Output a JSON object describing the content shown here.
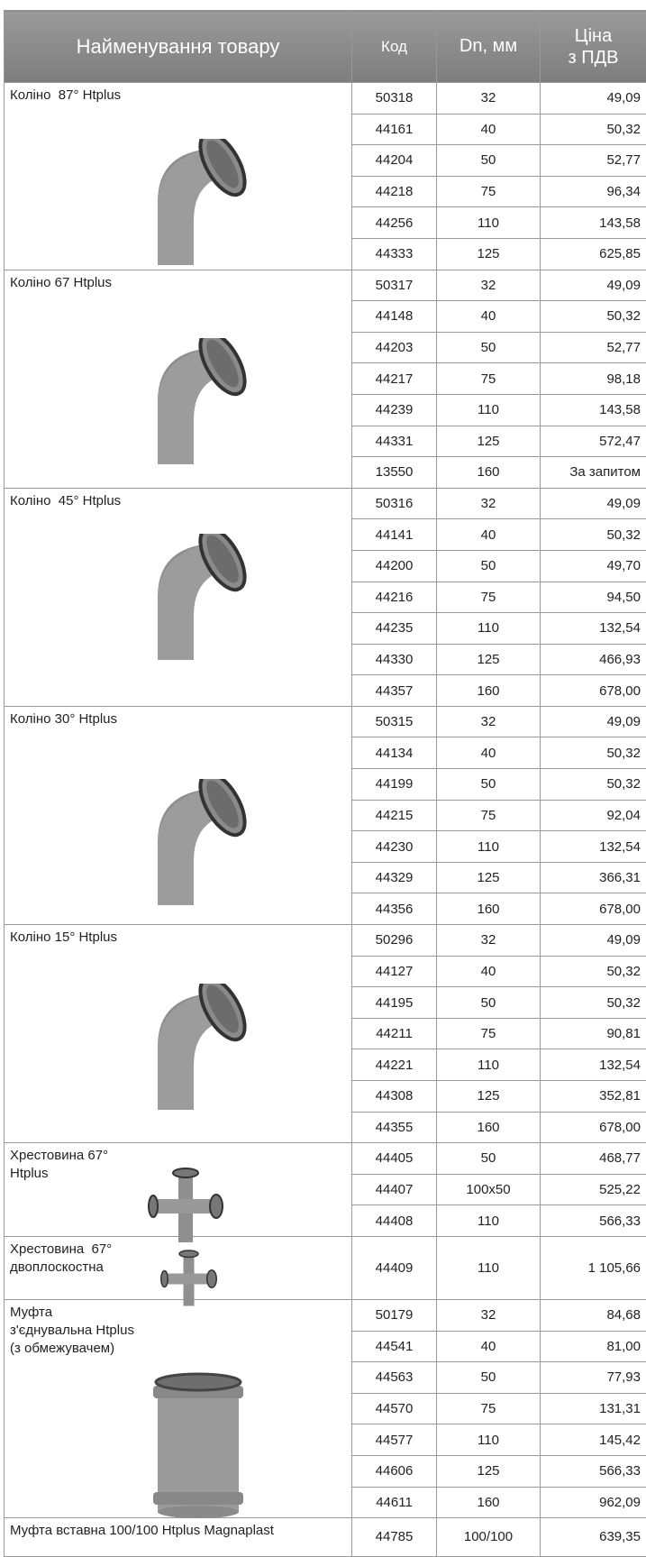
{
  "table": {
    "header": [
      "Найменування товару",
      "Код",
      "Dn, мм",
      [
        "Ціна",
        "з ПДВ"
      ]
    ],
    "groups": [
      {
        "name": "Коліно  87° Htplus",
        "rows": [
          [
            "50318",
            "32",
            "49,09"
          ],
          [
            "44161",
            "40",
            "50,32"
          ],
          [
            "44204",
            "50",
            "52,77"
          ],
          [
            "44218",
            "75",
            "96,34"
          ],
          [
            "44256",
            "110",
            "143,58"
          ],
          [
            "44333",
            "125",
            "625,85"
          ]
        ]
      },
      {
        "name": "Коліно 67 Htplus",
        "rows": [
          [
            "50317",
            "32",
            "49,09"
          ],
          [
            "44148",
            "40",
            "50,32"
          ],
          [
            "44203",
            "50",
            "52,77"
          ],
          [
            "44217",
            "75",
            "98,18"
          ],
          [
            "44239",
            "110",
            "143,58"
          ],
          [
            "44331",
            "125",
            "572,47"
          ],
          [
            "13550",
            "160",
            "За запитом"
          ]
        ]
      },
      {
        "name": "Коліно  45° Htplus",
        "rows": [
          [
            "50316",
            "32",
            "49,09"
          ],
          [
            "44141",
            "40",
            "50,32"
          ],
          [
            "44200",
            "50",
            "49,70"
          ],
          [
            "44216",
            "75",
            "94,50"
          ],
          [
            "44235",
            "110",
            "132,54"
          ],
          [
            "44330",
            "125",
            "466,93"
          ],
          [
            "44357",
            "160",
            "678,00"
          ]
        ]
      },
      {
        "name": "Коліно 30° Htplus",
        "rows": [
          [
            "50315",
            "32",
            "49,09"
          ],
          [
            "44134",
            "40",
            "50,32"
          ],
          [
            "44199",
            "50",
            "50,32"
          ],
          [
            "44215",
            "75",
            "92,04"
          ],
          [
            "44230",
            "110",
            "132,54"
          ],
          [
            "44329",
            "125",
            "366,31"
          ],
          [
            "44356",
            "160",
            "678,00"
          ]
        ]
      },
      {
        "name": "Коліно 15° Htplus",
        "rows": [
          [
            "50296",
            "32",
            "49,09"
          ],
          [
            "44127",
            "40",
            "50,32"
          ],
          [
            "44195",
            "50",
            "50,32"
          ],
          [
            "44211",
            "75",
            "90,81"
          ],
          [
            "44221",
            "110",
            "132,54"
          ],
          [
            "44308",
            "125",
            "352,81"
          ],
          [
            "44355",
            "160",
            "678,00"
          ]
        ]
      },
      {
        "name": "Хрестовина 67° Htplus",
        "rows": [
          [
            "44405",
            "50",
            "468,77"
          ],
          [
            "44407",
            "100x50",
            "525,22"
          ],
          [
            "44408",
            "110",
            "566,33"
          ]
        ]
      },
      {
        "name": "Хрестовина  67° двоплоскостна",
        "rows": [
          [
            "44409",
            "110",
            "1 105,66"
          ]
        ]
      },
      {
        "name": "Муфта з'єднувальна Htplus (з обмежувачем)",
        "rows": [
          [
            "50179",
            "32",
            "84,68"
          ],
          [
            "44541",
            "40",
            "81,00"
          ],
          [
            "44563",
            "50",
            "77,93"
          ],
          [
            "44570",
            "75",
            "131,31"
          ],
          [
            "44577",
            "110",
            "145,42"
          ],
          [
            "44606",
            "125",
            "566,33"
          ],
          [
            "44611",
            "160",
            "962,09"
          ]
        ]
      },
      {
        "name": "Муфта вставна 100/100 Htplus Magnaplast",
        "rows": [
          [
            "44785",
            "100/100",
            "639,35"
          ]
        ]
      }
    ]
  }
}
